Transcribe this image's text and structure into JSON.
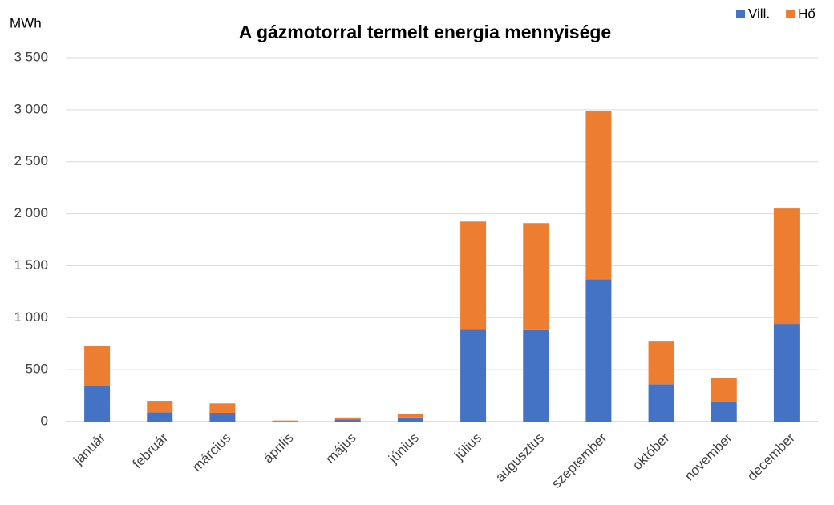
{
  "chart_data": {
    "type": "stacked_bar",
    "title": "A gázmotorral termelt energia mennyisége",
    "y_label": "MWh",
    "categories": [
      "január",
      "február",
      "március",
      "április",
      "május",
      "június",
      "július",
      "augusztus",
      "szeptember",
      "október",
      "november",
      "december"
    ],
    "series": [
      {
        "name": "Vill.",
        "color": "#4472c4",
        "values": [
          340,
          90,
          85,
          3,
          20,
          40,
          885,
          880,
          1370,
          360,
          195,
          940
        ]
      },
      {
        "name": "Hő",
        "color": "#ed7d31",
        "values": [
          385,
          110,
          90,
          7,
          20,
          35,
          1040,
          1030,
          1620,
          410,
          225,
          1110
        ]
      }
    ],
    "ylim": [
      0,
      3500
    ],
    "yticks": [
      0,
      500,
      {
        "value": 1000,
        "label": "1 000"
      },
      {
        "value": 1500,
        "label": "1 500"
      },
      {
        "value": 2000,
        "label": "2 000"
      },
      {
        "value": 2500,
        "label": "2 500"
      },
      {
        "value": 3000,
        "label": "3 000"
      },
      {
        "value": 3500,
        "label": "3 500"
      }
    ],
    "grid": true,
    "legend": "top-right"
  }
}
